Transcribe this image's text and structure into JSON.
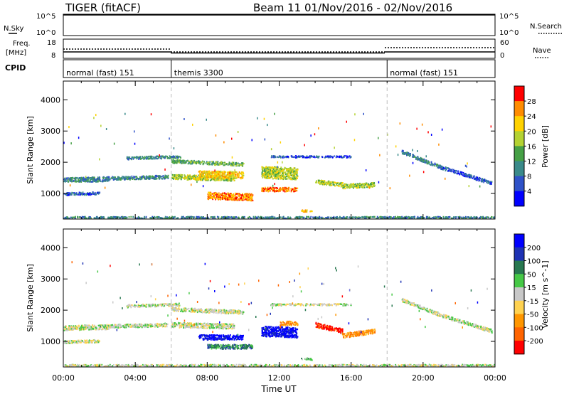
{
  "header": {
    "title": "TIGER (fitACF)",
    "subtitle": "Beam 11  01/Nov/2016 - 02/Nov/2016"
  },
  "strip_labels": {
    "nsky": "N.Sky",
    "nsky_ticks": [
      "10^5",
      "10^0"
    ],
    "nsearch": "N.Search",
    "nsearch_ticks": [
      "10^5",
      "10^0"
    ],
    "freq_line1": "Freq.",
    "freq_line2": "[MHz]",
    "freq_ticks": [
      "18",
      "8"
    ],
    "nave": "Nave",
    "nave_ticks": [
      "60",
      "0"
    ],
    "cpid": "CPID"
  },
  "cpid_segments": [
    {
      "label": "normal (fast) 151",
      "start_h": 0,
      "end_h": 6
    },
    {
      "label": "themis 3300",
      "start_h": 6,
      "end_h": 18
    },
    {
      "label": "normal (fast) 151",
      "start_h": 18,
      "end_h": 24
    }
  ],
  "colors": {
    "power_scale": [
      "#0000ff",
      "#2f52c8",
      "#3a8a8a",
      "#46a046",
      "#b4d232",
      "#ffd200",
      "#ff8c00",
      "#ff0000"
    ],
    "velocity_scale": [
      "#0000ff",
      "#1e32b4",
      "#287850",
      "#46c846",
      "#c8c8c8",
      "#ffd250",
      "#ff9600",
      "#ff6400",
      "#ff0000"
    ],
    "velocity_ground": "#c8c8c8"
  },
  "chart_data": [
    {
      "type": "heatmap",
      "parameter": "power",
      "xlabel": "Time UT",
      "ylabel": "Slant Range [km]",
      "x_ticks": [
        "00:00",
        "04:00",
        "08:00",
        "12:00",
        "16:00",
        "20:00",
        "00:00"
      ],
      "xlim_hours": [
        0,
        24
      ],
      "y_ticks": [
        1000,
        2000,
        3000,
        4000
      ],
      "ylim_km": [
        180,
        4600
      ],
      "colorbar_label": "Power [dB]",
      "colorbar_ticks": [
        4,
        8,
        12,
        16,
        20,
        24,
        28
      ],
      "colorbar_range": [
        0,
        32
      ],
      "features": [
        {
          "t_start": 0.0,
          "t_end": 24.0,
          "r_start": 250,
          "r_end": 250,
          "width": 60,
          "level": 2,
          "note": "ground scatter"
        },
        {
          "t_start": 0.0,
          "t_end": 2.5,
          "r_start": 1450,
          "r_end": 1480,
          "width": 150,
          "level": 2
        },
        {
          "t_start": 0.0,
          "t_end": 2.0,
          "r_start": 1000,
          "r_end": 1030,
          "width": 90,
          "level": 1
        },
        {
          "t_start": 2.3,
          "t_end": 5.8,
          "r_start": 1500,
          "r_end": 1550,
          "width": 110,
          "level": 2
        },
        {
          "t_start": 3.5,
          "t_end": 6.5,
          "r_start": 2150,
          "r_end": 2200,
          "width": 90,
          "level": 2
        },
        {
          "t_start": 6.0,
          "t_end": 10.0,
          "r_start": 2050,
          "r_end": 1950,
          "width": 110,
          "level": 3
        },
        {
          "t_start": 6.0,
          "t_end": 9.5,
          "r_start": 1550,
          "r_end": 1500,
          "width": 160,
          "level": 4
        },
        {
          "t_start": 7.5,
          "t_end": 10.0,
          "r_start": 1650,
          "r_end": 1600,
          "width": 220,
          "level": 5
        },
        {
          "t_start": 8.0,
          "t_end": 10.5,
          "r_start": 950,
          "r_end": 900,
          "width": 220,
          "level": 6
        },
        {
          "t_start": 11.0,
          "t_end": 13.0,
          "r_start": 1700,
          "r_end": 1650,
          "width": 380,
          "level": 4
        },
        {
          "t_start": 11.0,
          "t_end": 13.0,
          "r_start": 1150,
          "r_end": 1150,
          "width": 130,
          "level": 6
        },
        {
          "t_start": 13.2,
          "t_end": 13.8,
          "r_start": 470,
          "r_end": 450,
          "width": 60,
          "level": 5
        },
        {
          "t_start": 14.0,
          "t_end": 15.5,
          "r_start": 1400,
          "r_end": 1300,
          "width": 130,
          "level": 4
        },
        {
          "t_start": 15.5,
          "t_end": 17.3,
          "r_start": 1250,
          "r_end": 1300,
          "width": 150,
          "level": 4
        },
        {
          "t_start": 11.5,
          "t_end": 16.0,
          "r_start": 2200,
          "r_end": 2200,
          "width": 60,
          "level": 1
        },
        {
          "t_start": 18.8,
          "t_end": 21.0,
          "r_start": 2350,
          "r_end": 1850,
          "width": 110,
          "level": 2
        },
        {
          "t_start": 21.0,
          "t_end": 23.8,
          "r_start": 1850,
          "r_end": 1350,
          "width": 110,
          "level": 1
        }
      ]
    },
    {
      "type": "heatmap",
      "parameter": "velocity",
      "xlabel": "Time UT",
      "ylabel": "Slant Range [km]",
      "x_ticks": [
        "00:00",
        "04:00",
        "08:00",
        "12:00",
        "16:00",
        "20:00",
        "00:00"
      ],
      "xlim_hours": [
        0,
        24
      ],
      "y_ticks": [
        1000,
        2000,
        3000,
        4000
      ],
      "ylim_km": [
        180,
        4600
      ],
      "colorbar_label": "Velocity [m s^-1]",
      "colorbar_ticks": [
        "200",
        "100",
        "50",
        "15",
        "-15",
        "-50",
        "-100",
        "-200"
      ],
      "colorbar_range": [
        -250,
        250
      ],
      "features": [
        {
          "t_start": 0.0,
          "t_end": 24.0,
          "r_start": 250,
          "r_end": 250,
          "width": 60,
          "level": 4,
          "note": "ground scatter"
        },
        {
          "t_start": 0.0,
          "t_end": 2.5,
          "r_start": 1450,
          "r_end": 1480,
          "width": 150,
          "level": 4
        },
        {
          "t_start": 0.0,
          "t_end": 2.0,
          "r_start": 1000,
          "r_end": 1030,
          "width": 90,
          "level": 4
        },
        {
          "t_start": 2.3,
          "t_end": 5.8,
          "r_start": 1500,
          "r_end": 1550,
          "width": 110,
          "level": 4
        },
        {
          "t_start": 3.5,
          "t_end": 6.5,
          "r_start": 2150,
          "r_end": 2200,
          "width": 90,
          "level": 4
        },
        {
          "t_start": 6.0,
          "t_end": 10.0,
          "r_start": 2050,
          "r_end": 1950,
          "width": 120,
          "level": 4
        },
        {
          "t_start": 6.0,
          "t_end": 9.5,
          "r_start": 1550,
          "r_end": 1500,
          "width": 160,
          "level": 4
        },
        {
          "t_start": 7.5,
          "t_end": 10.0,
          "r_start": 1150,
          "r_end": 1150,
          "width": 160,
          "level": 0
        },
        {
          "t_start": 8.0,
          "t_end": 10.5,
          "r_start": 850,
          "r_end": 850,
          "width": 140,
          "level": 2
        },
        {
          "t_start": 11.0,
          "t_end": 13.0,
          "r_start": 1350,
          "r_end": 1300,
          "width": 330,
          "level": 0
        },
        {
          "t_start": 12.0,
          "t_end": 13.0,
          "r_start": 1600,
          "r_end": 1600,
          "width": 140,
          "level": 6
        },
        {
          "t_start": 13.2,
          "t_end": 13.8,
          "r_start": 470,
          "r_end": 450,
          "width": 60,
          "level": 3
        },
        {
          "t_start": 14.0,
          "t_end": 15.5,
          "r_start": 1550,
          "r_end": 1350,
          "width": 150,
          "level": 8
        },
        {
          "t_start": 15.5,
          "t_end": 17.3,
          "r_start": 1200,
          "r_end": 1350,
          "width": 150,
          "level": 6
        },
        {
          "t_start": 11.5,
          "t_end": 16.0,
          "r_start": 2200,
          "r_end": 2200,
          "width": 60,
          "level": 4
        },
        {
          "t_start": 18.8,
          "t_end": 21.0,
          "r_start": 2350,
          "r_end": 1850,
          "width": 110,
          "level": 4
        },
        {
          "t_start": 21.0,
          "t_end": 23.8,
          "r_start": 1850,
          "r_end": 1350,
          "width": 110,
          "level": 4
        }
      ]
    }
  ]
}
